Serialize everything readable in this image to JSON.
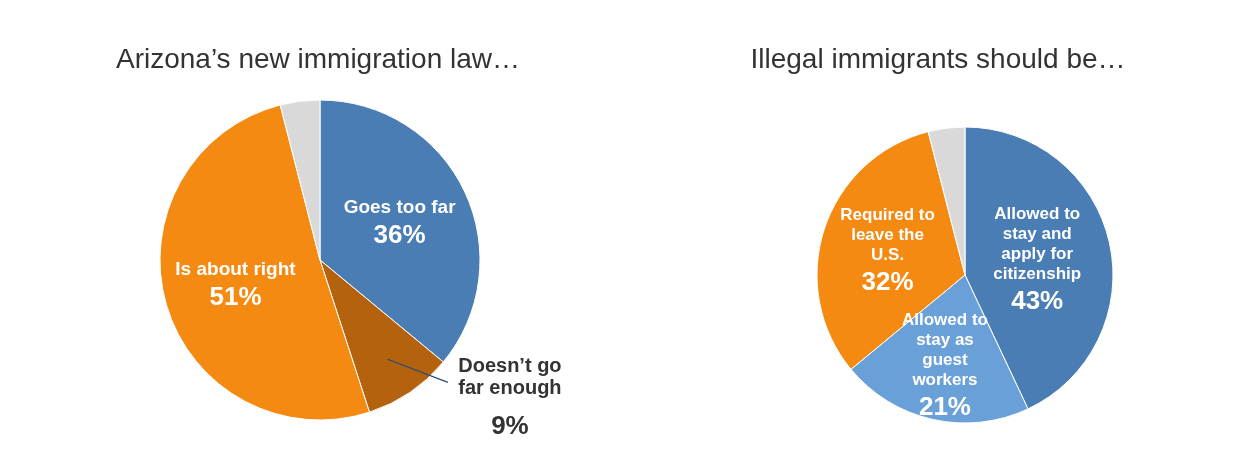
{
  "chart_data": [
    {
      "type": "pie",
      "title": "Arizona’s new immigration law…",
      "categories": [
        "Goes too far",
        "Doesn’t go far enough",
        "Is about right",
        null
      ],
      "values": [
        36,
        9,
        51,
        4
      ],
      "colors": [
        "#4a7db3",
        "#b5620f",
        "#f48a12",
        "#d9d9d9"
      ],
      "value_labels": [
        "36%",
        "9%",
        "51%",
        null
      ]
    },
    {
      "type": "pie",
      "title": "Illegal immigrants should be…",
      "categories": [
        "Allowed to stay and apply for citizenship",
        "Allowed to stay as guest workers",
        "Required to leave the U.S.",
        null
      ],
      "values": [
        43,
        21,
        32,
        4
      ],
      "colors": [
        "#4a7db3",
        "#6aa0d8",
        "#f48a12",
        "#d9d9d9"
      ],
      "value_labels": [
        "43%",
        "21%",
        "32%",
        null
      ]
    }
  ]
}
